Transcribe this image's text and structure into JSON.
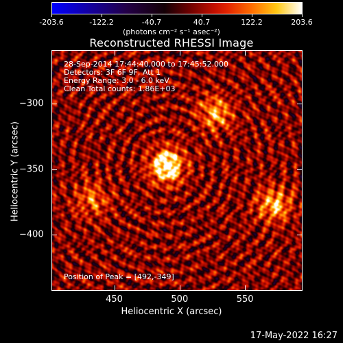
{
  "colorbar": {
    "ticks": [
      "-203.6",
      "-122.2",
      "-40.7",
      "40.7",
      "122.2",
      "203.6"
    ],
    "units": "(photons cm⁻² s⁻¹ asec⁻²)",
    "range": [
      -203.6,
      203.6
    ],
    "colormap": "blue-black-red-yellow-white"
  },
  "annotations": {
    "line1": "28-Sep-2014 17:44:40.000 to 17:45:52.000",
    "line2": "Detectors: 3F 6F 9F, Att 1",
    "line3": "Energy Range: 3.0 - 6.0 keV",
    "line4": "Clean     Total counts: 1.86E+03",
    "peak": "Position of Peak = [492,-349]"
  },
  "timestamp": "17-May-2022 16:27",
  "chart_data": {
    "type": "heatmap",
    "title": "Reconstructed RHESSI Image",
    "xlabel": "Heliocentric X (arcsec)",
    "ylabel": "Heliocentric Y (arcsec)",
    "xlim": [
      402,
      594
    ],
    "ylim": [
      -443,
      -259
    ],
    "xticks": [
      "450",
      "500",
      "550"
    ],
    "yticks": [
      "-300",
      "-350",
      "-400"
    ],
    "xtick_values": [
      450,
      500,
      550
    ],
    "ytick_values": [
      -300,
      -350,
      -400
    ],
    "peak": [
      492,
      -349
    ],
    "sources": [
      {
        "x": 490,
        "y": -347,
        "amplitude": 203.6
      },
      {
        "x": 527,
        "y": -307,
        "amplitude": 120
      },
      {
        "x": 572,
        "y": -377,
        "amplitude": 130
      },
      {
        "x": 433,
        "y": -373,
        "amplitude": 90
      }
    ]
  }
}
